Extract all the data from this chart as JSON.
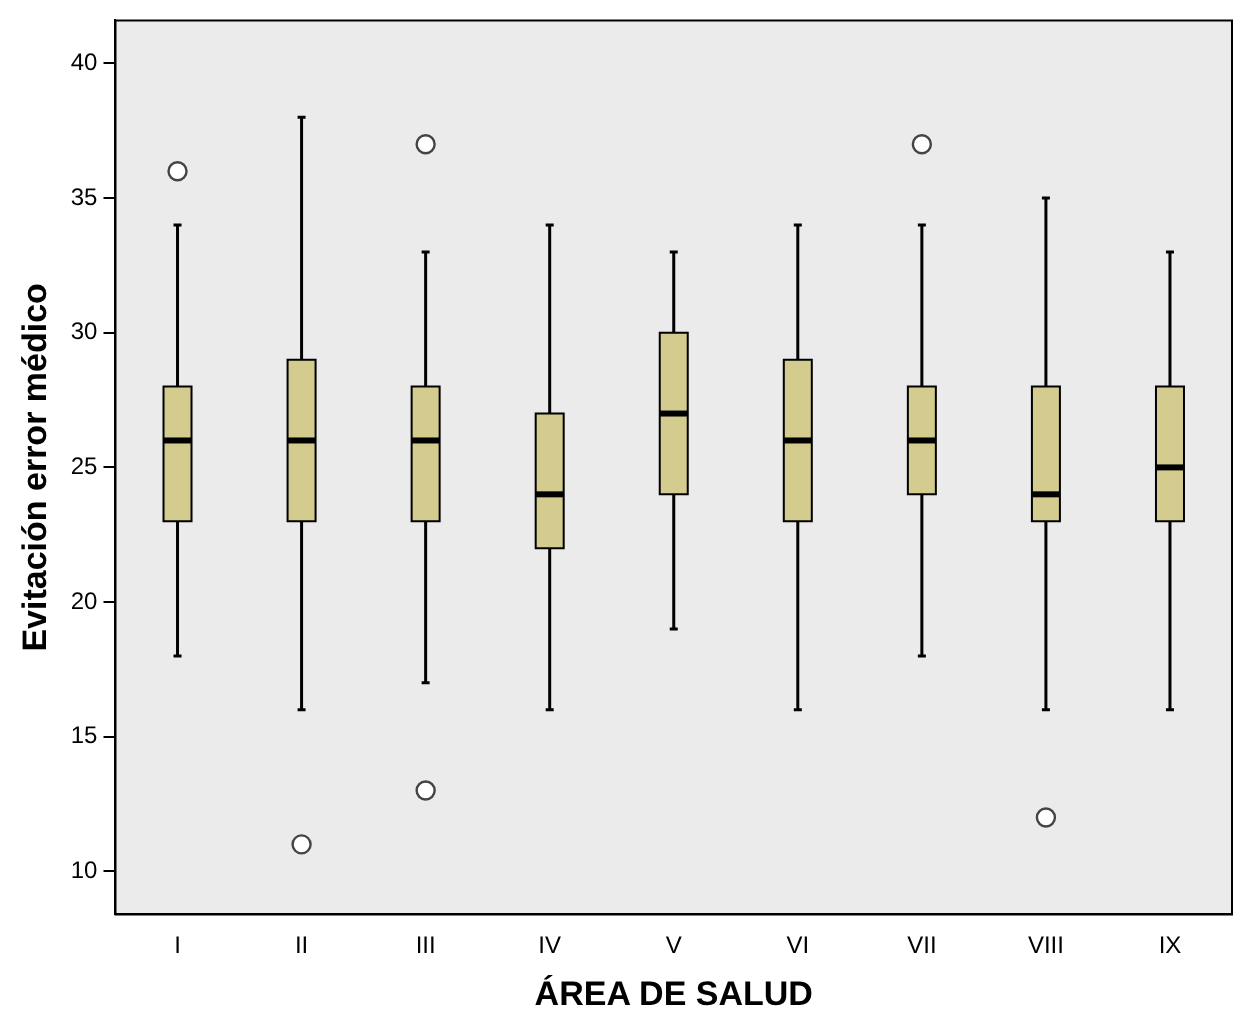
{
  "chart_data": {
    "type": "box",
    "xlabel": "ÁREA DE SALUD",
    "ylabel": "Evitación error médico",
    "categories": [
      "I",
      "II",
      "III",
      "IV",
      "V",
      "VI",
      "VII",
      "VIII",
      "IX"
    ],
    "color": "#d3cc8e",
    "ylim": [
      8.4,
      41.6
    ],
    "yticks": [
      10,
      15,
      20,
      25,
      30,
      35,
      40
    ],
    "boxes": [
      {
        "low": 18,
        "q1": 23,
        "median": 26,
        "q3": 28,
        "high": 34,
        "outliers": [
          36
        ]
      },
      {
        "low": 16,
        "q1": 23,
        "median": 26,
        "q3": 29,
        "high": 38,
        "outliers": [
          11
        ]
      },
      {
        "low": 17,
        "q1": 23,
        "median": 26,
        "q3": 28,
        "high": 33,
        "outliers": [
          37,
          13
        ]
      },
      {
        "low": 16,
        "q1": 22,
        "median": 24,
        "q3": 27,
        "high": 34
      },
      {
        "low": 19,
        "q1": 24,
        "median": 27,
        "q3": 30,
        "high": 33
      },
      {
        "low": 16,
        "q1": 23,
        "median": 26,
        "q3": 29,
        "high": 34
      },
      {
        "low": 18,
        "q1": 24,
        "median": 26,
        "q3": 28,
        "high": 34,
        "outliers": [
          37
        ]
      },
      {
        "low": 16,
        "q1": 23,
        "median": 24,
        "q3": 28,
        "high": 35,
        "outliers": [
          12
        ]
      },
      {
        "low": 16,
        "q1": 23,
        "median": 25,
        "q3": 28,
        "high": 33
      }
    ]
  }
}
